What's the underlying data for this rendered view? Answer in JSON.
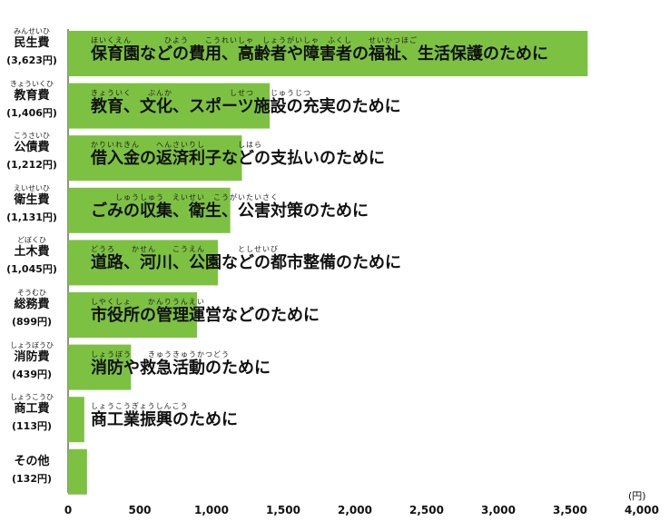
{
  "chart_data": {
    "type": "bar",
    "orientation": "horizontal",
    "xlim": [
      0,
      4000
    ],
    "x_ticks": [
      "0",
      "500",
      "1,000",
      "1,500",
      "2,000",
      "2,500",
      "3,000",
      "3,500",
      "4,000"
    ],
    "unit_label": "(円)",
    "bar_color": "#7dc142",
    "grid": false,
    "items": [
      {
        "category": "民生費",
        "reading": "みんせいひ",
        "value_label": "(3,623円)",
        "value": 3623,
        "description": "保育園などの費用、高齢者や障害者の福祉、生活保護のために",
        "description_ruby": "ほいくえん　　　　ひよう　　こうれいしゃ　しょうがいしゃ　ふくし　　せいかつほご"
      },
      {
        "category": "教育費",
        "reading": "きょういくひ",
        "value_label": "(1,406円)",
        "value": 1406,
        "description": "教育、文化、スポーツ施設の充実のために",
        "description_ruby": "きょういく　　ぶんか　　　　　　　しせつ　　じゅうじつ"
      },
      {
        "category": "公債費",
        "reading": "こうさいひ",
        "value_label": "(1,212円)",
        "value": 1212,
        "description": "借入金の返済利子などの支払いのために",
        "description_ruby": "かりいれきん　　へんさいりし　　　　しはら"
      },
      {
        "category": "衛生費",
        "reading": "えいせいひ",
        "value_label": "(1,131円)",
        "value": 1131,
        "description": "ごみの収集、衛生、公害対策のために",
        "description_ruby": "　　　しゅうしゅう　えいせい　こうがいたいさく"
      },
      {
        "category": "土木費",
        "reading": "どぼくひ",
        "value_label": "(1,045円)",
        "value": 1045,
        "description": "道路、河川、公園などの都市整備のために",
        "description_ruby": "どうろ　　かせん　　こうえん　　　　としせいび"
      },
      {
        "category": "総務費",
        "reading": "そうむひ",
        "value_label": "(899円)",
        "value": 899,
        "description": "市役所の管理運営などのために",
        "description_ruby": "しやくしょ　　かんりうんえい"
      },
      {
        "category": "消防費",
        "reading": "しょうぼうひ",
        "value_label": "(439円)",
        "value": 439,
        "description": "消防や救急活動のために",
        "description_ruby": "しょうぼう　　きゅうきゅうかつどう"
      },
      {
        "category": "商工費",
        "reading": "しょうこうひ",
        "value_label": "(113円)",
        "value": 113,
        "description": "商工業振興のために",
        "description_ruby": "しょうこうぎょうしんこう"
      },
      {
        "category": "その他",
        "reading": "",
        "value_label": "(132円)",
        "value": 132,
        "description": "",
        "description_ruby": ""
      }
    ]
  }
}
